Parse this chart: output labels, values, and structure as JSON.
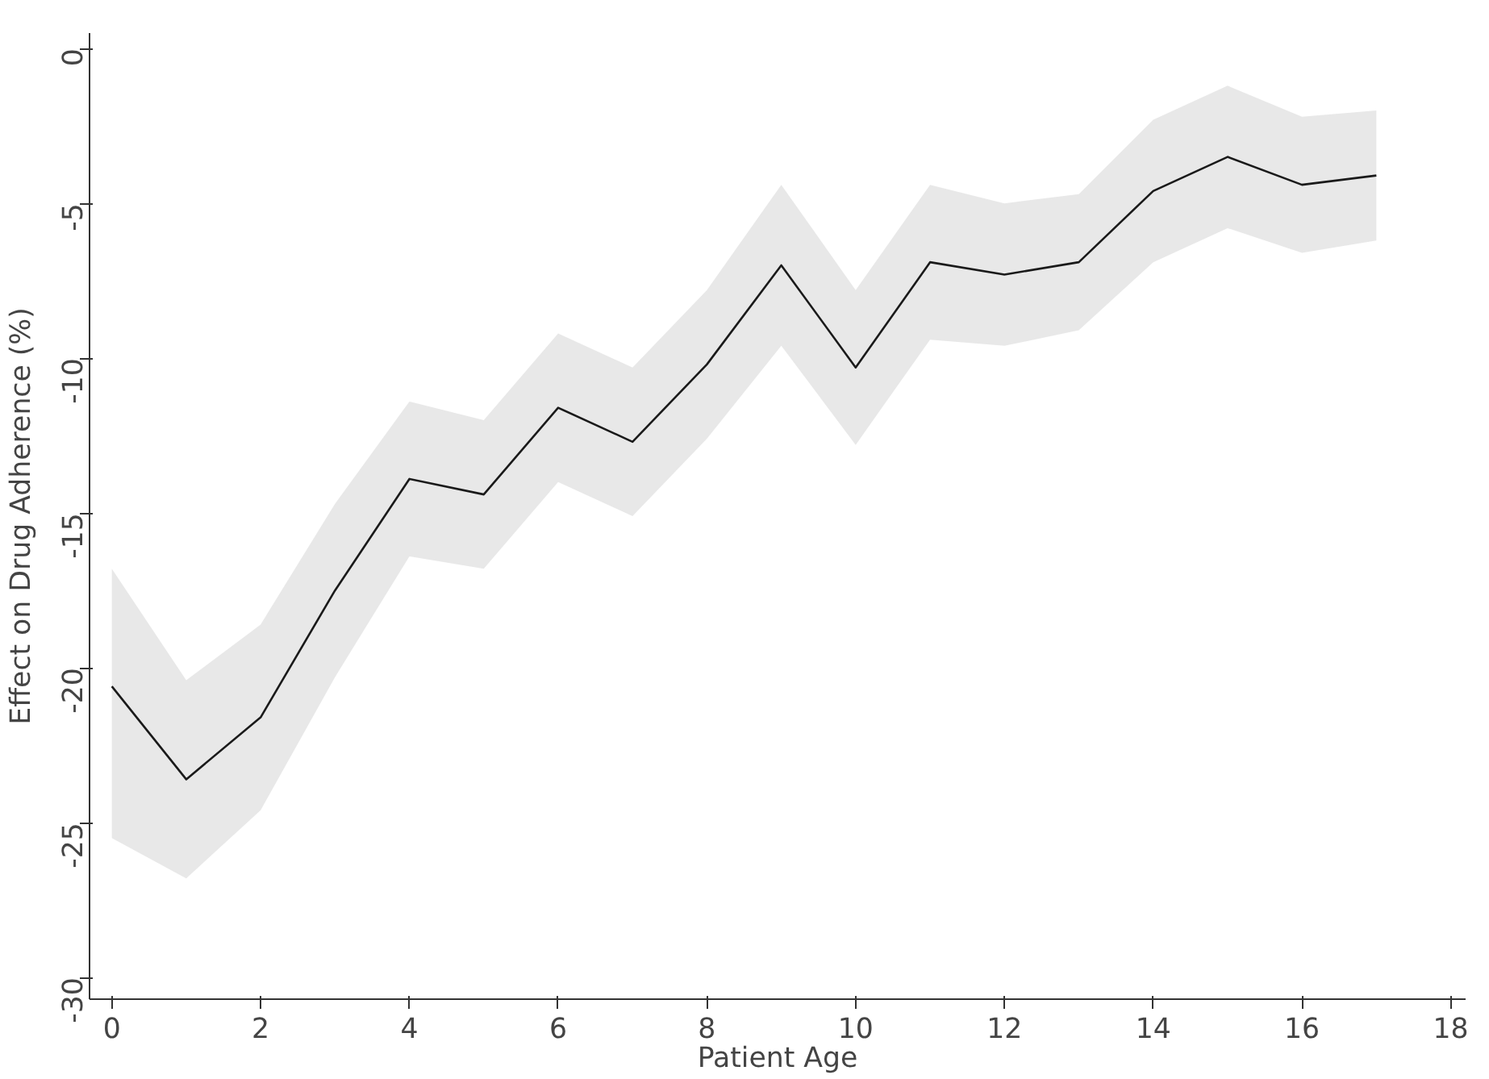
{
  "chart_data": {
    "type": "line",
    "xlabel": "Patient Age",
    "ylabel": "Effect on Drug Adherence (%)",
    "x": [
      0,
      1,
      2,
      3,
      4,
      5,
      6,
      7,
      8,
      9,
      10,
      11,
      12,
      13,
      14,
      15,
      16,
      17
    ],
    "series": [
      {
        "color": "#1a1a1a",
        "values": [
          -20.6,
          -23.6,
          -21.6,
          -17.5,
          -13.9,
          -14.4,
          -11.6,
          -12.7,
          -10.2,
          -7.0,
          -10.3,
          -6.9,
          -7.3,
          -6.9,
          -4.6,
          -3.5,
          -4.4,
          -4.1
        ],
        "lower": [
          -25.5,
          -26.8,
          -24.6,
          -20.3,
          -16.4,
          -16.8,
          -14.0,
          -15.1,
          -12.6,
          -9.6,
          -12.8,
          -9.4,
          -9.6,
          -9.1,
          -6.9,
          -5.8,
          -6.6,
          -6.2
        ],
        "upper": [
          -16.8,
          -20.4,
          -18.6,
          -14.7,
          -11.4,
          -12.0,
          -9.2,
          -10.3,
          -7.8,
          -4.4,
          -7.8,
          -4.4,
          -5.0,
          -4.7,
          -2.3,
          -1.2,
          -2.2,
          -2.0
        ]
      }
    ],
    "xlim": [
      -0.3,
      18.2
    ],
    "ylim": [
      -30.7,
      0.5
    ],
    "xticks": [
      0,
      2,
      4,
      6,
      8,
      10,
      12,
      14,
      16,
      18
    ],
    "yticks": [
      -30,
      -25,
      -20,
      -15,
      -10,
      -5,
      0
    ],
    "grid": false
  }
}
